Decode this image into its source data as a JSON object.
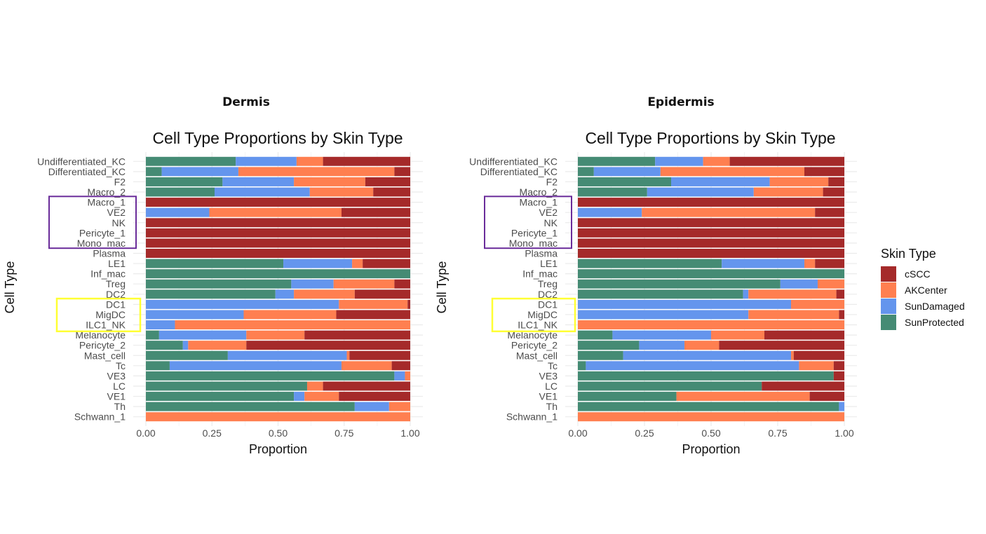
{
  "legend": {
    "title": "Skin Type",
    "entries": [
      {
        "name": "cSCC",
        "color": "#A52A2A"
      },
      {
        "name": "AKCenter",
        "color": "#FF7F50"
      },
      {
        "name": "SunDamaged",
        "color": "#6495ED"
      },
      {
        "name": "SunProtected",
        "color": "#458B74"
      }
    ]
  },
  "highlight_boxes": [
    {
      "color": "#6A2C9A",
      "categories": [
        "Macro_1",
        "VE2",
        "NK",
        "Pericyte_1",
        "Mono_mac"
      ]
    },
    {
      "color": "#FFFF33",
      "categories": [
        "DC1",
        "MigDC",
        "ILC1_NK"
      ]
    }
  ],
  "chart_data": [
    {
      "type": "bar",
      "orientation": "horizontal",
      "stacked": true,
      "panel_title": "Dermis",
      "title": "Cell Type Proportions by Skin Type",
      "xlabel": "Proportion",
      "ylabel": "Cell Type",
      "xlim": [
        0,
        1
      ],
      "xticks": [
        "0.00",
        "0.25",
        "0.50",
        "0.75",
        "1.00"
      ],
      "grid": true,
      "legend_position": "right",
      "categories": [
        "Undifferentiated_KC",
        "Differentiated_KC",
        "F2",
        "Macro_2",
        "Macro_1",
        "VE2",
        "NK",
        "Pericyte_1",
        "Mono_mac",
        "Plasma",
        "LE1",
        "Inf_mac",
        "Treg",
        "DC2",
        "DC1",
        "MigDC",
        "ILC1_NK",
        "Melanocyte",
        "Pericyte_2",
        "Mast_cell",
        "Tc",
        "VE3",
        "LC",
        "VE1",
        "Th",
        "Schwann_1"
      ],
      "series": [
        {
          "name": "SunProtected",
          "values": [
            0.34,
            0.06,
            0.29,
            0.26,
            0,
            0,
            0,
            0,
            0,
            0,
            0.52,
            1.0,
            0.55,
            0.49,
            0,
            0,
            0,
            0.05,
            0.14,
            0.31,
            0.09,
            0.94,
            0.61,
            0.56,
            0.79,
            0
          ]
        },
        {
          "name": "SunDamaged",
          "values": [
            0.23,
            0.29,
            0.27,
            0.36,
            0,
            0.24,
            0,
            0,
            0,
            0,
            0.26,
            0,
            0.16,
            0.07,
            0.73,
            0.37,
            0.11,
            0.33,
            0.02,
            0.45,
            0.65,
            0.04,
            0,
            0.04,
            0.13,
            0
          ]
        },
        {
          "name": "AKCenter",
          "values": [
            0.1,
            0.59,
            0.27,
            0.24,
            0,
            0.5,
            0,
            0,
            0,
            0,
            0.04,
            0,
            0.23,
            0.23,
            0.26,
            0.35,
            0.89,
            0.22,
            0.22,
            0.01,
            0.19,
            0.02,
            0.06,
            0.13,
            0.08,
            1.0
          ]
        },
        {
          "name": "cSCC",
          "values": [
            0.33,
            0.06,
            0.17,
            0.14,
            1.0,
            0.26,
            1.0,
            1.0,
            1.0,
            1.0,
            0.18,
            0,
            0.06,
            0.21,
            0.01,
            0.28,
            0,
            0.4,
            0.62,
            0.23,
            0.07,
            0,
            0.33,
            0.27,
            0,
            0
          ]
        }
      ]
    },
    {
      "type": "bar",
      "orientation": "horizontal",
      "stacked": true,
      "panel_title": "Epidermis",
      "title": "Cell Type Proportions by Skin Type",
      "xlabel": "Proportion",
      "ylabel": "Cell Type",
      "xlim": [
        0,
        1
      ],
      "xticks": [
        "0.00",
        "0.25",
        "0.50",
        "0.75",
        "1.00"
      ],
      "grid": true,
      "legend_position": "right",
      "categories": [
        "Undifferentiated_KC",
        "Differentiated_KC",
        "F2",
        "Macro_2",
        "Macro_1",
        "VE2",
        "NK",
        "Pericyte_1",
        "Mono_mac",
        "Plasma",
        "LE1",
        "Inf_mac",
        "Treg",
        "DC2",
        "DC1",
        "MigDC",
        "ILC1_NK",
        "Melanocyte",
        "Pericyte_2",
        "Mast_cell",
        "Tc",
        "VE3",
        "LC",
        "VE1",
        "Th",
        "Schwann_1"
      ],
      "series": [
        {
          "name": "SunProtected",
          "values": [
            0.29,
            0.06,
            0.35,
            0.26,
            0,
            0,
            0,
            0,
            0,
            0,
            0.54,
            1.0,
            0.76,
            0.62,
            0,
            0,
            0,
            0.13,
            0.23,
            0.17,
            0.03,
            0.96,
            0.69,
            0.37,
            0.98,
            0
          ]
        },
        {
          "name": "SunDamaged",
          "values": [
            0.18,
            0.25,
            0.37,
            0.4,
            0,
            0.24,
            0,
            0,
            0,
            0,
            0.31,
            0,
            0.14,
            0.02,
            0.8,
            0.64,
            0,
            0.37,
            0.17,
            0.63,
            0.8,
            0,
            0,
            0,
            0.02,
            0
          ]
        },
        {
          "name": "AKCenter",
          "values": [
            0.1,
            0.54,
            0.22,
            0.26,
            0,
            0.65,
            0,
            0,
            0,
            0,
            0.04,
            0,
            0.1,
            0.33,
            0.2,
            0.34,
            1.0,
            0.2,
            0.13,
            0.01,
            0.13,
            0,
            0,
            0.5,
            0,
            1.0
          ]
        },
        {
          "name": "cSCC",
          "values": [
            0.43,
            0.15,
            0.06,
            0.08,
            1.0,
            0.11,
            1.0,
            1.0,
            1.0,
            1.0,
            0.11,
            0,
            0.0,
            0.03,
            0,
            0.02,
            0,
            0.3,
            0.47,
            0.19,
            0.04,
            0.04,
            0.31,
            0.13,
            0,
            0
          ]
        }
      ]
    }
  ]
}
